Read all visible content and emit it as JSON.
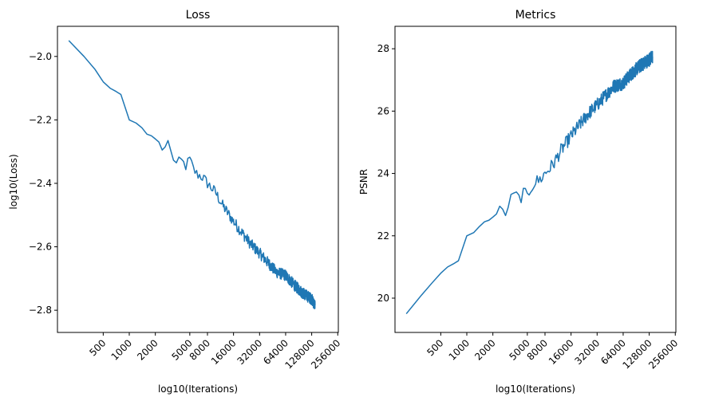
{
  "chart_data": [
    {
      "type": "line",
      "title": "Loss",
      "xlabel": "log10(Iterations)",
      "ylabel": "log10(Loss)",
      "x_scale": "log",
      "x_tick_values": [
        500,
        1000,
        2000,
        5000,
        8000,
        16000,
        32000,
        64000,
        128000,
        256000
      ],
      "x_tick_labels": [
        "500",
        "1000",
        "2000",
        "5000",
        "8000",
        "16000",
        "32000",
        "64000",
        "128000",
        "256000"
      ],
      "xlim": [
        148,
        260000
      ],
      "y_ticks": [
        -2.8,
        -2.6,
        -2.4,
        -2.2,
        -2.0
      ],
      "y_tick_labels": [
        "−2.8",
        "−2.6",
        "−2.4",
        "−2.2",
        "−2.0"
      ],
      "ylim": [
        -2.87,
        -1.905
      ],
      "grid": false,
      "series": [
        {
          "color": "#1f77b4",
          "noise_amplitude": 0.018,
          "x": [
            200,
            300,
            400,
            500,
            600,
            700,
            800,
            1000,
            1200,
            1400,
            1600,
            1800,
            2000,
            2200,
            2400,
            2600,
            2800,
            3000,
            3500,
            4000,
            4500,
            5000,
            5500,
            6000,
            7000,
            8000,
            10000,
            12000,
            16000,
            20000,
            25000,
            32000,
            40000,
            50000,
            64000,
            80000,
            100000,
            128000,
            140000
          ],
          "y": [
            -1.95,
            -2.0,
            -2.04,
            -2.08,
            -2.1,
            -2.11,
            -2.12,
            -2.2,
            -2.21,
            -2.225,
            -2.245,
            -2.25,
            -2.26,
            -2.27,
            -2.295,
            -2.285,
            -2.265,
            -2.3,
            -2.34,
            -2.33,
            -2.345,
            -2.325,
            -2.355,
            -2.37,
            -2.38,
            -2.4,
            -2.43,
            -2.47,
            -2.52,
            -2.555,
            -2.59,
            -2.62,
            -2.65,
            -2.68,
            -2.69,
            -2.72,
            -2.745,
            -2.765,
            -2.785
          ]
        }
      ]
    },
    {
      "type": "line",
      "title": "Metrics",
      "xlabel": "log10(Iterations)",
      "ylabel": "PSNR",
      "x_scale": "log",
      "x_tick_values": [
        500,
        1000,
        2000,
        5000,
        8000,
        16000,
        32000,
        64000,
        128000,
        256000
      ],
      "x_tick_labels": [
        "500",
        "1000",
        "2000",
        "5000",
        "8000",
        "16000",
        "32000",
        "64000",
        "128000",
        "256000"
      ],
      "xlim": [
        148,
        260000
      ],
      "y_ticks": [
        20,
        22,
        24,
        26,
        28
      ],
      "y_tick_labels": [
        "20",
        "22",
        "24",
        "26",
        "28"
      ],
      "ylim": [
        18.9,
        28.72
      ],
      "grid": false,
      "series": [
        {
          "color": "#1f77b4",
          "noise_amplitude": 0.22,
          "x": [
            200,
            300,
            400,
            500,
            600,
            700,
            800,
            1000,
            1200,
            1400,
            1600,
            1800,
            2000,
            2200,
            2400,
            2600,
            2800,
            3000,
            3500,
            4000,
            4500,
            5000,
            5500,
            6000,
            7000,
            8000,
            10000,
            12000,
            16000,
            20000,
            25000,
            32000,
            40000,
            50000,
            64000,
            80000,
            100000,
            128000,
            140000
          ],
          "y": [
            19.5,
            20.1,
            20.5,
            20.8,
            21.0,
            21.1,
            21.2,
            22.0,
            22.1,
            22.3,
            22.45,
            22.5,
            22.6,
            22.7,
            22.95,
            22.85,
            22.65,
            23.0,
            23.3,
            23.2,
            23.35,
            23.25,
            23.55,
            23.7,
            23.8,
            24.0,
            24.3,
            24.7,
            25.2,
            25.55,
            25.9,
            26.2,
            26.5,
            26.8,
            26.9,
            27.2,
            27.45,
            27.65,
            27.75
          ]
        }
      ]
    }
  ]
}
